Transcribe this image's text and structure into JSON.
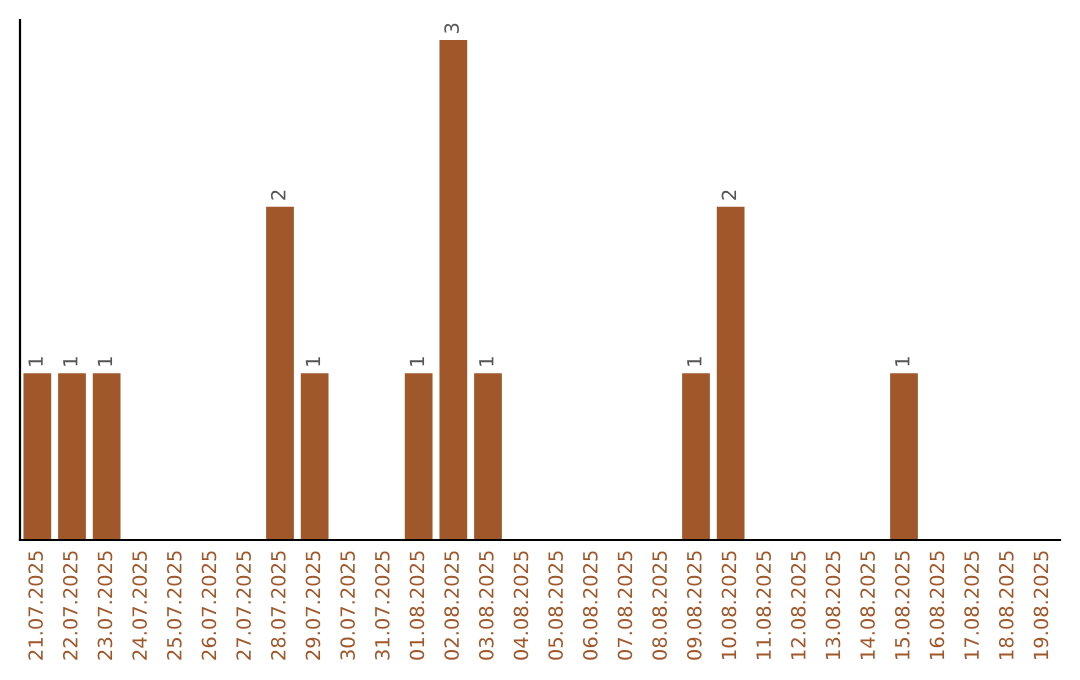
{
  "chart_data": {
    "type": "bar",
    "categories": [
      "21.07.2025",
      "22.07.2025",
      "23.07.2025",
      "24.07.2025",
      "25.07.2025",
      "26.07.2025",
      "27.07.2025",
      "28.07.2025",
      "29.07.2025",
      "30.07.2025",
      "31.07.2025",
      "01.08.2025",
      "02.08.2025",
      "03.08.2025",
      "04.08.2025",
      "05.08.2025",
      "06.08.2025",
      "07.08.2025",
      "08.08.2025",
      "09.08.2025",
      "10.08.2025",
      "11.08.2025",
      "12.08.2025",
      "13.08.2025",
      "14.08.2025",
      "15.08.2025",
      "16.08.2025",
      "17.08.2025",
      "18.08.2025",
      "19.08.2025"
    ],
    "values": [
      1,
      1,
      1,
      0,
      0,
      0,
      0,
      2,
      1,
      0,
      0,
      1,
      3,
      1,
      0,
      0,
      0,
      0,
      0,
      1,
      2,
      0,
      0,
      0,
      0,
      1,
      0,
      0,
      0,
      0
    ],
    "value_labels": [
      "1",
      "1",
      "1",
      null,
      null,
      null,
      null,
      "2",
      "1",
      null,
      null,
      "1",
      "3",
      "1",
      null,
      null,
      null,
      null,
      null,
      "1",
      "2",
      null,
      null,
      null,
      null,
      "1",
      null,
      null,
      null,
      null
    ],
    "color": "#a0572a",
    "grid": false,
    "legend": false
  }
}
